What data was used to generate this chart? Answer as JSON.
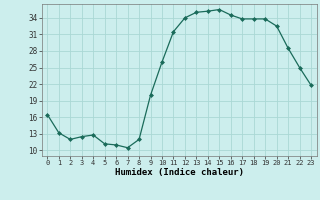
{
  "x": [
    0,
    1,
    2,
    3,
    4,
    5,
    6,
    7,
    8,
    9,
    10,
    11,
    12,
    13,
    14,
    15,
    16,
    17,
    18,
    19,
    20,
    21,
    22,
    23
  ],
  "y": [
    16.5,
    13.2,
    12.0,
    12.5,
    12.8,
    11.2,
    11.0,
    10.5,
    12.0,
    20.0,
    26.0,
    31.5,
    34.0,
    35.0,
    35.2,
    35.5,
    34.5,
    33.8,
    33.8,
    33.8,
    32.5,
    28.5,
    25.0,
    21.8
  ],
  "line_color": "#1a6b5a",
  "marker": "D",
  "marker_size": 2.0,
  "bg_color": "#cceeed",
  "grid_color": "#aad8d5",
  "xlabel": "Humidex (Indice chaleur)",
  "xlim": [
    -0.5,
    23.5
  ],
  "ylim": [
    9,
    36.5
  ],
  "yticks": [
    10,
    13,
    16,
    19,
    22,
    25,
    28,
    31,
    34
  ],
  "xticks": [
    0,
    1,
    2,
    3,
    4,
    5,
    6,
    7,
    8,
    9,
    10,
    11,
    12,
    13,
    14,
    15,
    16,
    17,
    18,
    19,
    20,
    21,
    22,
    23
  ]
}
